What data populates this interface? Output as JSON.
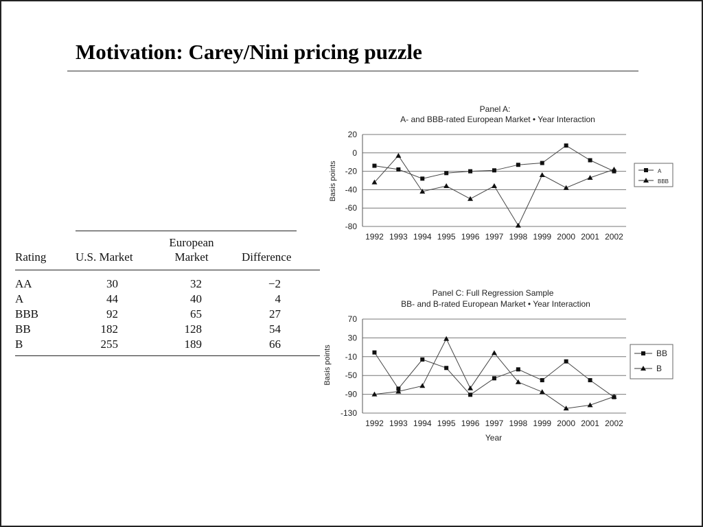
{
  "title": "Motivation: Carey/Nini pricing puzzle",
  "table": {
    "headers": {
      "rating": "Rating",
      "us": "U.S. Market",
      "eu_line1": "European",
      "eu_line2": "Market",
      "diff": "Difference"
    },
    "rows": [
      {
        "rating": "AA",
        "us": "30",
        "eu": "32",
        "diff": "−2"
      },
      {
        "rating": "A",
        "us": "44",
        "eu": "40",
        "diff": "4"
      },
      {
        "rating": "BBB",
        "us": "92",
        "eu": "65",
        "diff": "27"
      },
      {
        "rating": "BB",
        "us": "182",
        "eu": "128",
        "diff": "54"
      },
      {
        "rating": "B",
        "us": "255",
        "eu": "189",
        "diff": "66"
      }
    ]
  },
  "chart_data": [
    {
      "type": "line",
      "title": "Panel A:",
      "subtitle": "A- and BBB-rated European Market • Year Interaction",
      "xlabel": "",
      "ylabel": "Basis points",
      "categories": [
        "1992",
        "1993",
        "1994",
        "1995",
        "1996",
        "1997",
        "1998",
        "1999",
        "2000",
        "2001",
        "2002"
      ],
      "ylim": [
        -80,
        20
      ],
      "yticks": [
        20,
        0,
        -20,
        -40,
        -60,
        -80
      ],
      "grid": true,
      "legend": "right",
      "series": [
        {
          "name": "A",
          "marker": "square",
          "values": [
            -14,
            -18,
            -28,
            -22,
            -20,
            -19,
            -13,
            -11,
            8,
            -8,
            -20
          ]
        },
        {
          "name": "BBB",
          "marker": "triangle",
          "values": [
            -32,
            -3,
            -42,
            -36,
            -50,
            -36,
            -79,
            -24,
            -38,
            -27,
            -18
          ]
        }
      ]
    },
    {
      "type": "line",
      "title": "Panel C: Full Regression Sample",
      "subtitle": "BB- and B-rated European Market • Year Interaction",
      "xlabel": "Year",
      "ylabel": "Basis points",
      "categories": [
        "1992",
        "1993",
        "1994",
        "1995",
        "1996",
        "1997",
        "1998",
        "1999",
        "2000",
        "2001",
        "2002"
      ],
      "ylim": [
        -130,
        70
      ],
      "yticks": [
        70,
        30,
        -10,
        -50,
        -90,
        -130
      ],
      "grid": true,
      "legend": "right",
      "series": [
        {
          "name": "BB",
          "marker": "square",
          "values": [
            -1,
            -78,
            -16,
            -34,
            -91,
            -56,
            -37,
            -60,
            -20,
            -60,
            -96
          ]
        },
        {
          "name": "B",
          "marker": "triangle",
          "values": [
            -90,
            -84,
            -72,
            28,
            -77,
            -2,
            -64,
            -85,
            -120,
            -113,
            -95
          ]
        }
      ]
    }
  ]
}
